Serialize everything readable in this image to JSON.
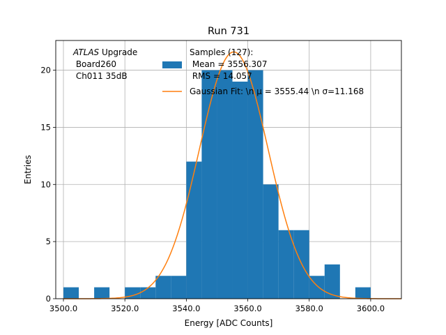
{
  "chart_data": {
    "type": "histogram",
    "title": "Run 731",
    "xlabel": "Energy [ADC Counts]",
    "ylabel": "Entries",
    "xlim": [
      3497.5,
      3610.0
    ],
    "ylim": [
      0,
      22.6
    ],
    "grid": true,
    "bin_width": 5,
    "bins": [
      {
        "x0": 3500,
        "count": 1
      },
      {
        "x0": 3505,
        "count": 0
      },
      {
        "x0": 3510,
        "count": 1
      },
      {
        "x0": 3515,
        "count": 0
      },
      {
        "x0": 3520,
        "count": 1
      },
      {
        "x0": 3525,
        "count": 1
      },
      {
        "x0": 3530,
        "count": 2
      },
      {
        "x0": 3535,
        "count": 2
      },
      {
        "x0": 3540,
        "count": 12
      },
      {
        "x0": 3545,
        "count": 20
      },
      {
        "x0": 3550,
        "count": 20
      },
      {
        "x0": 3555,
        "count": 19
      },
      {
        "x0": 3560,
        "count": 20
      },
      {
        "x0": 3565,
        "count": 10
      },
      {
        "x0": 3570,
        "count": 6
      },
      {
        "x0": 3575,
        "count": 6
      },
      {
        "x0": 3580,
        "count": 2
      },
      {
        "x0": 3585,
        "count": 3
      },
      {
        "x0": 3590,
        "count": 0
      },
      {
        "x0": 3595,
        "count": 1
      }
    ],
    "fit": {
      "mu": 3555.44,
      "sigma": 11.168,
      "amplitude": 21.6,
      "x_range": [
        3500,
        3610
      ]
    },
    "xticks": [
      {
        "value": 3500,
        "label": "3500.0"
      },
      {
        "value": 3520,
        "label": "3520.0"
      },
      {
        "value": 3540,
        "label": "3540.0"
      },
      {
        "value": 3560,
        "label": "3560.0"
      },
      {
        "value": 3580,
        "label": "3580.0"
      },
      {
        "value": 3600,
        "label": "3600.0"
      }
    ],
    "yticks": [
      {
        "value": 0,
        "label": "0"
      },
      {
        "value": 5,
        "label": "5"
      },
      {
        "value": 10,
        "label": "10"
      },
      {
        "value": 15,
        "label": "15"
      },
      {
        "value": 20,
        "label": "20"
      }
    ],
    "annotation": {
      "atlas": "ATLAS",
      "upgrade": " Upgrade",
      "board": " Board260",
      "channel": " Ch011 35dB"
    },
    "legend": {
      "placement": "top-right",
      "samples_line1": "Samples (127):",
      "samples_line2": " Mean = 3556.307",
      "samples_line3": " RMS = 14.057",
      "fit_label": "Gaussian Fit: \\n μ = 3555.44 \\n σ=11.168"
    },
    "colors": {
      "bars": "#1f77b4",
      "fit": "#ff7f0e",
      "grid": "#b0b0b0"
    }
  }
}
